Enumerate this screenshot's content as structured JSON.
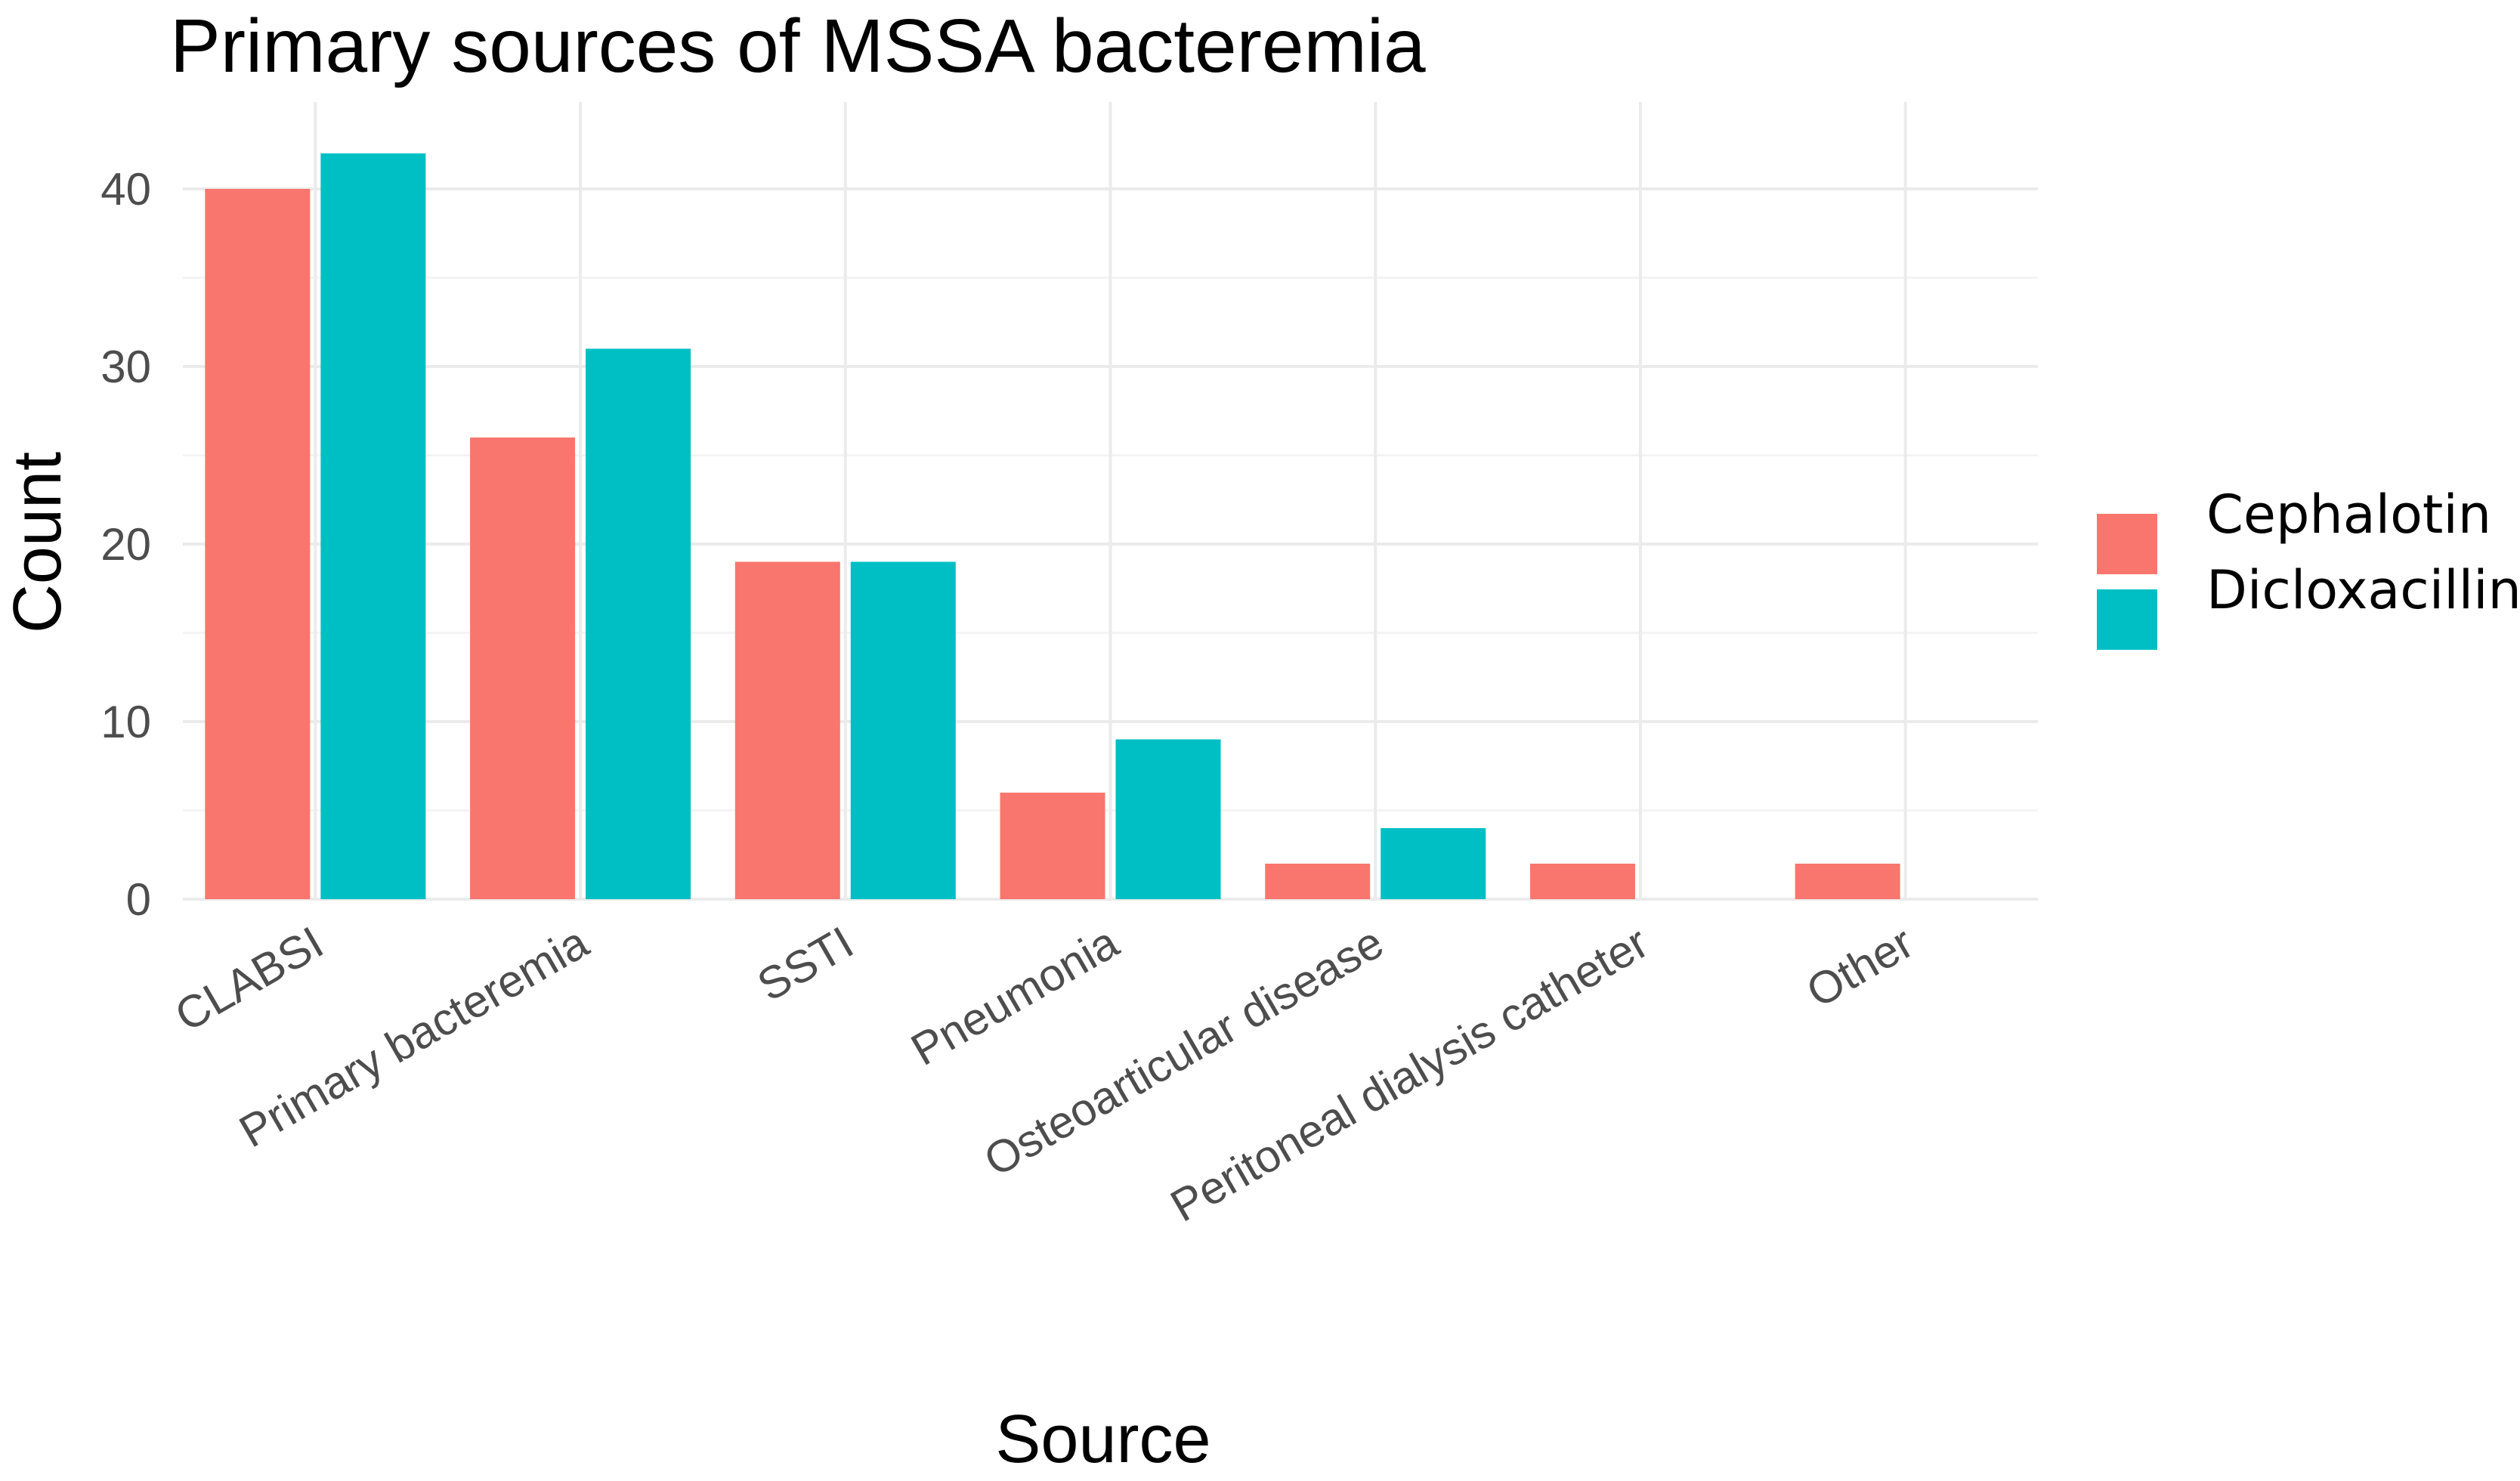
{
  "chart_data": {
    "type": "bar",
    "title": "Primary sources of MSSA bacteremia",
    "xlabel": "Source",
    "ylabel": "Count",
    "categories": [
      "CLABSI",
      "Primary bacteremia",
      "SSTI",
      "Pneumonia",
      "Osteoarticular disease",
      "Peritoneal dialysis catheter",
      "Other"
    ],
    "series": [
      {
        "name": "Cephalotin",
        "color": "#F8766D",
        "values": [
          40,
          26,
          19,
          6,
          2,
          2,
          2
        ]
      },
      {
        "name": "Dicloxacillin",
        "color": "#00BFC4",
        "values": [
          42,
          31,
          19,
          9,
          4,
          null,
          null
        ]
      }
    ],
    "yticks": [
      0,
      10,
      20,
      30,
      40
    ],
    "ylim": [
      0,
      43
    ],
    "grid": true,
    "legend_position": "right",
    "x_tick_rotation": -30
  }
}
